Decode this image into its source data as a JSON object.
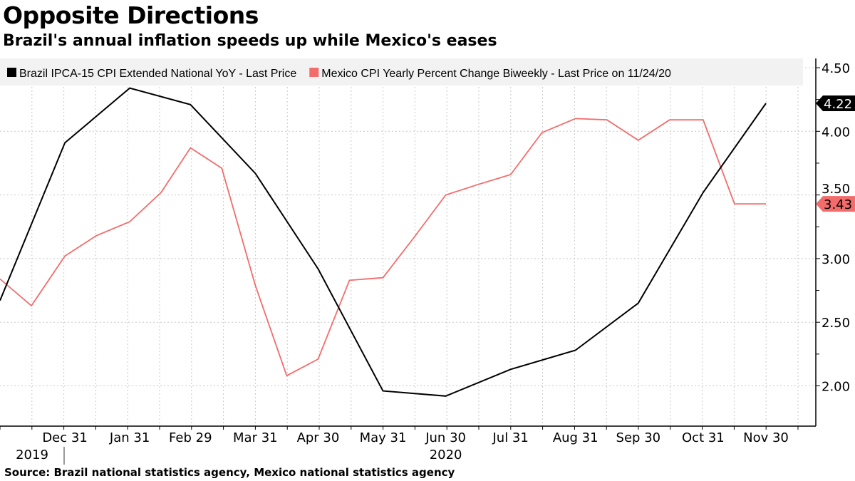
{
  "chart_data": {
    "type": "line",
    "title": "Opposite Directions",
    "subtitle": "Brazil's annual inflation speeds up while Mexico's eases",
    "source": "Source: Brazil national statistics agency, Mexico national statistics agency",
    "xlim": [
      "2019-11-30",
      "2020-12-15"
    ],
    "ylim": [
      1.75,
      4.55
    ],
    "y_ticks": [
      "2.00",
      "2.50",
      "3.00",
      "3.50",
      "4.00",
      "4.50"
    ],
    "y_tick_values": [
      2.0,
      2.5,
      3.0,
      3.5,
      4.0,
      4.5
    ],
    "y_axis_side": "right",
    "x_ticks": [
      {
        "date": "2019-12-31",
        "label": "Dec 31"
      },
      {
        "date": "2020-01-31",
        "label": "Jan 31"
      },
      {
        "date": "2020-02-29",
        "label": "Feb 29"
      },
      {
        "date": "2020-03-31",
        "label": "Mar 31"
      },
      {
        "date": "2020-04-30",
        "label": "Apr 30"
      },
      {
        "date": "2020-05-31",
        "label": "May 31"
      },
      {
        "date": "2020-06-30",
        "label": "Jun 30"
      },
      {
        "date": "2020-07-31",
        "label": "Jul 31"
      },
      {
        "date": "2020-08-31",
        "label": "Aug 31"
      },
      {
        "date": "2020-09-30",
        "label": "Sep 30"
      },
      {
        "date": "2020-10-31",
        "label": "Oct 31"
      },
      {
        "date": "2020-11-30",
        "label": "Nov 30"
      }
    ],
    "year_labels": [
      {
        "date": "2019-12-01",
        "label": "2019"
      },
      {
        "date": "2020-06-30",
        "label": "2020"
      }
    ],
    "grid": true,
    "legend_placement": "top",
    "series": [
      {
        "name": "Brazil IPCA-15 CPI Extended National YoY - Last Price",
        "color": "#000000",
        "last_value_label": "4.22",
        "x": [
          "2019-11-30",
          "2019-12-31",
          "2020-01-31",
          "2020-02-29",
          "2020-03-31",
          "2020-04-30",
          "2020-05-31",
          "2020-06-30",
          "2020-07-31",
          "2020-08-31",
          "2020-09-30",
          "2020-10-31",
          "2020-11-30"
        ],
        "y": [
          2.67,
          3.91,
          4.34,
          4.21,
          3.67,
          2.92,
          1.96,
          1.92,
          2.13,
          2.28,
          2.65,
          3.52,
          4.22
        ]
      },
      {
        "name": "Mexico CPI Yearly Percent Change Biweekly - Last Price on 11/24/20",
        "color": "#f36c6c",
        "last_value_label": "3.43",
        "x": [
          "2019-11-30",
          "2019-12-15",
          "2019-12-31",
          "2020-01-15",
          "2020-01-31",
          "2020-02-15",
          "2020-02-29",
          "2020-03-15",
          "2020-03-31",
          "2020-04-15",
          "2020-04-30",
          "2020-05-15",
          "2020-05-31",
          "2020-06-15",
          "2020-06-30",
          "2020-07-15",
          "2020-07-31",
          "2020-08-15",
          "2020-08-31",
          "2020-09-15",
          "2020-09-30",
          "2020-10-15",
          "2020-10-31",
          "2020-11-15",
          "2020-11-30"
        ],
        "y": [
          2.84,
          2.63,
          3.02,
          3.18,
          3.29,
          3.52,
          3.87,
          3.71,
          2.79,
          2.08,
          2.21,
          2.83,
          2.85,
          3.17,
          3.5,
          3.58,
          3.66,
          3.99,
          4.1,
          4.09,
          3.93,
          4.09,
          4.09,
          3.43,
          3.43
        ]
      }
    ]
  }
}
